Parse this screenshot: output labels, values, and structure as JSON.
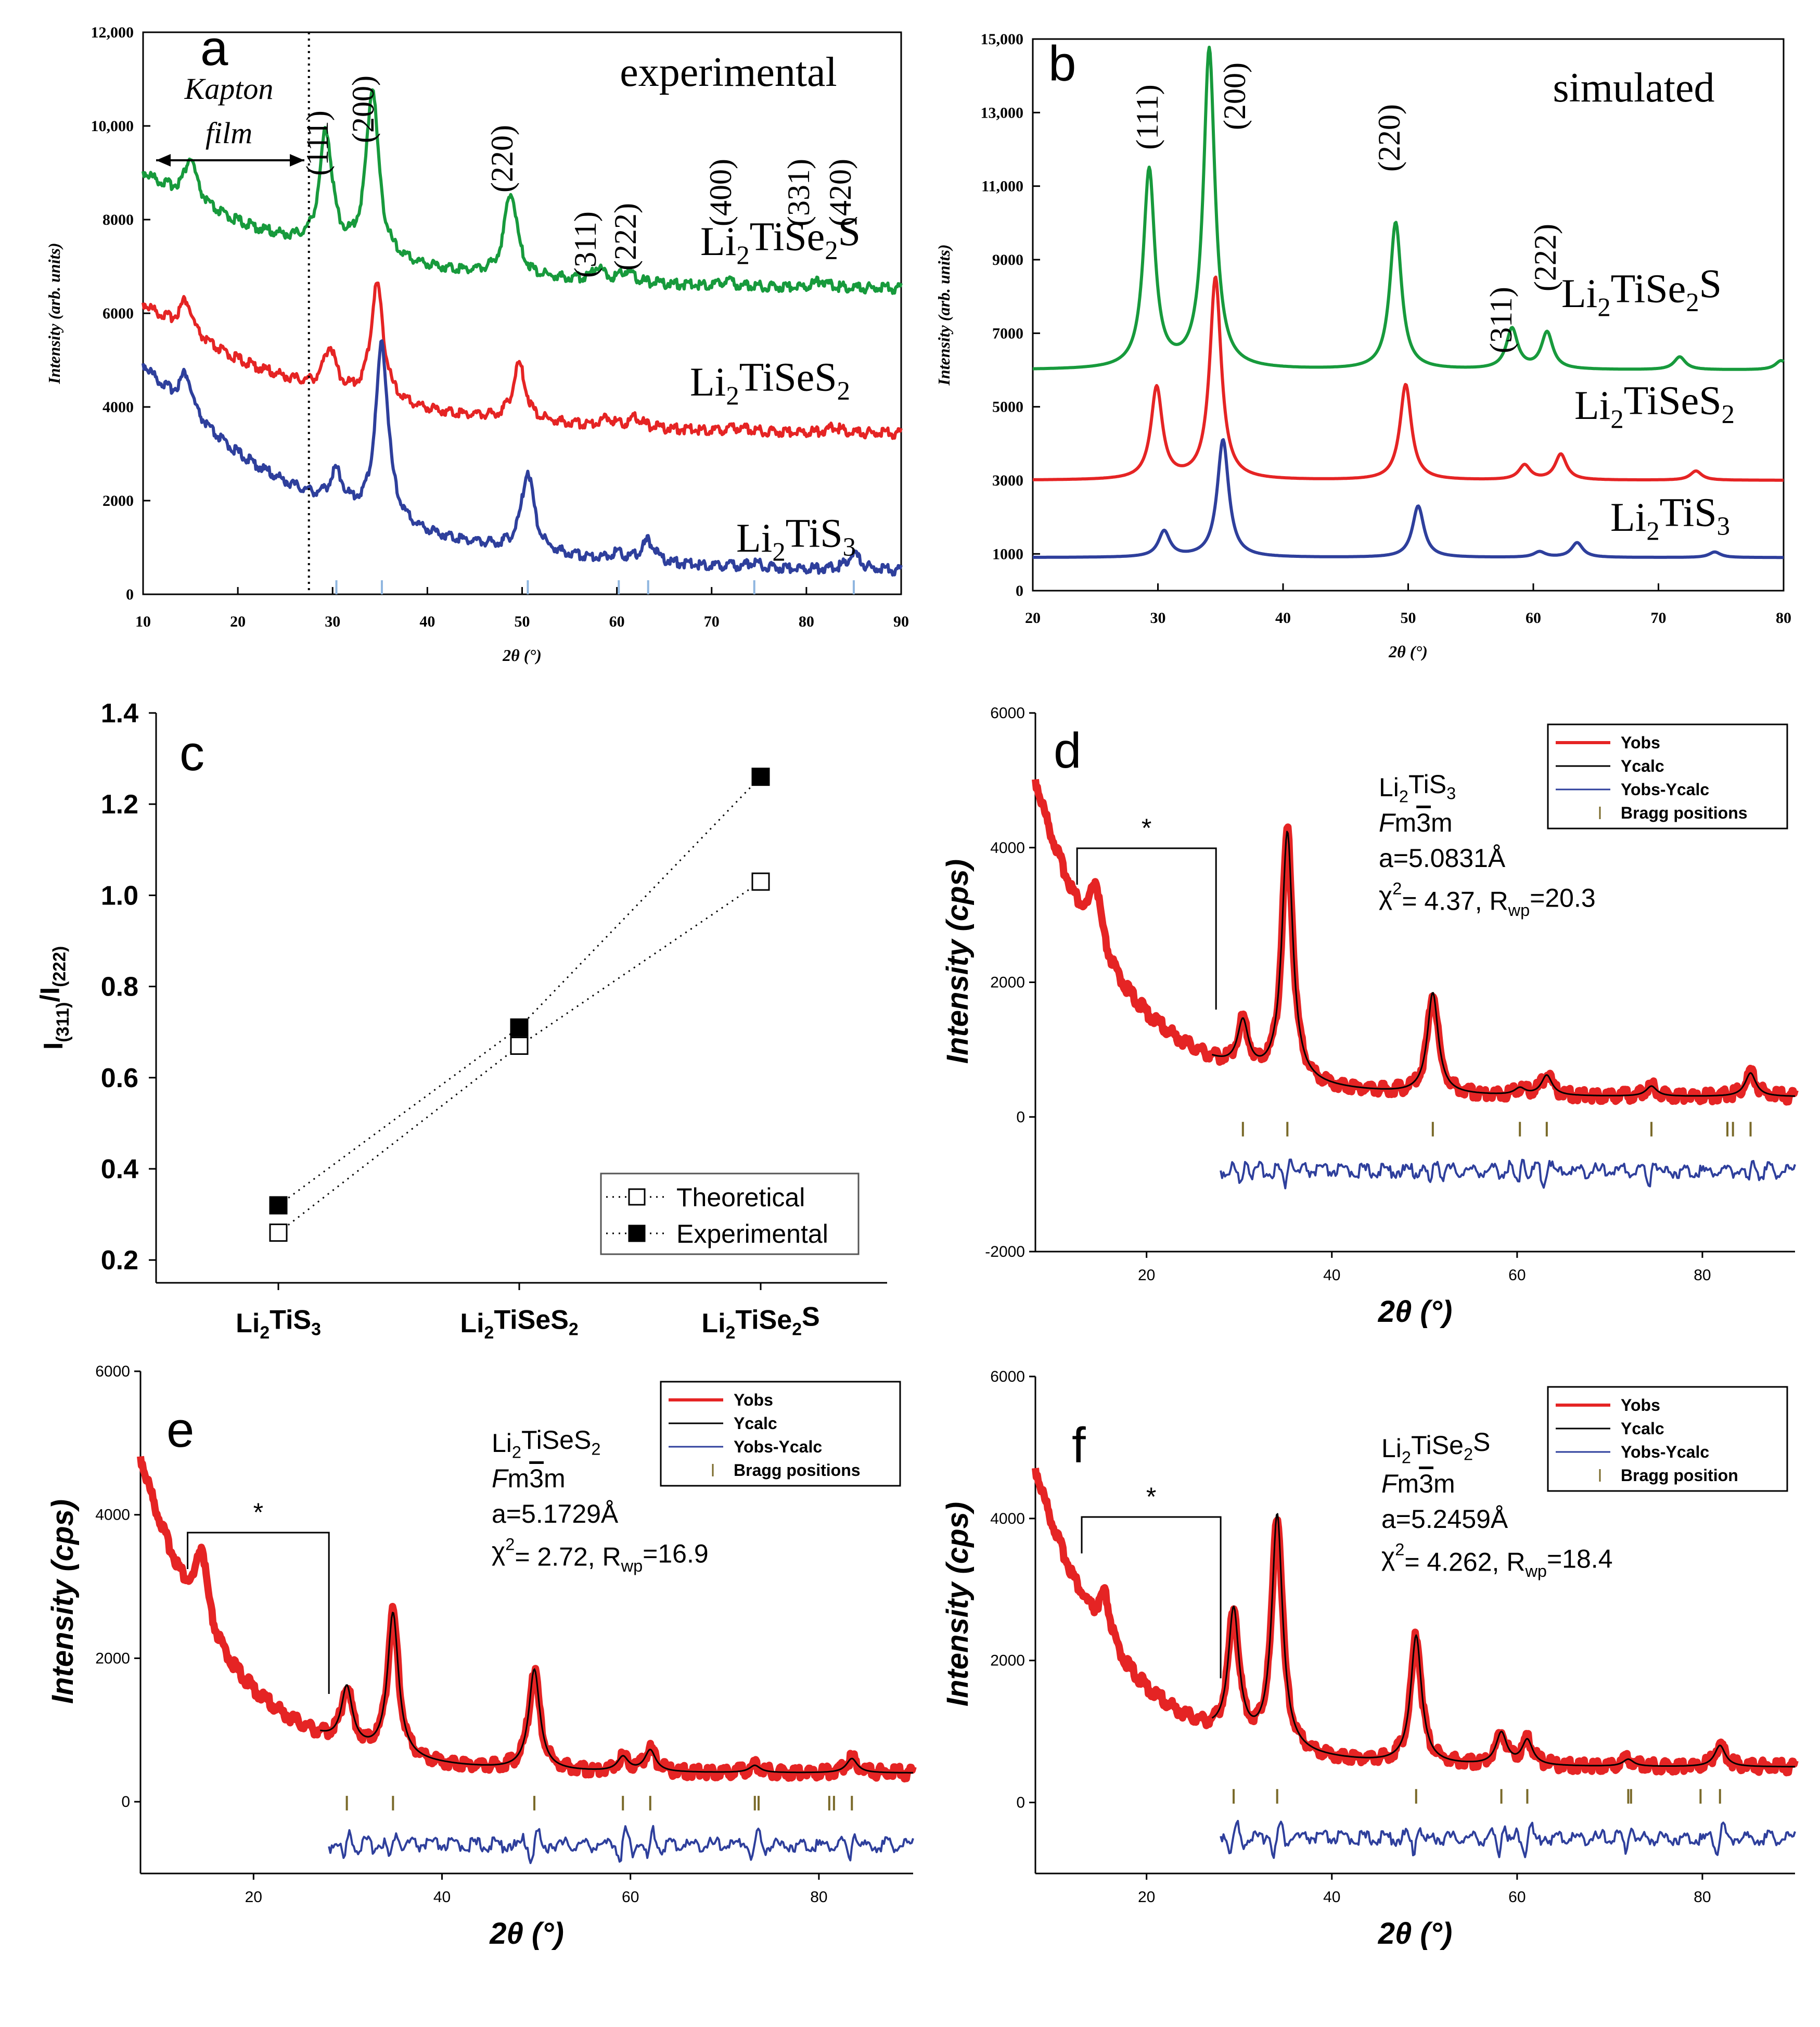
{
  "colors": {
    "green": "#179a3c",
    "red": "#e52424",
    "blue": "#2e3f9c",
    "lightblue": "#8fb6e0",
    "black": "#000000"
  },
  "chart_data": [
    {
      "type": "line",
      "panel": "a",
      "title": "experimental",
      "xlabel": "2θ (°)",
      "ylabel": "Intensity (arb. units)",
      "xlim": [
        10,
        90
      ],
      "ylim": [
        0,
        12000
      ],
      "xticks": [
        "10",
        "20",
        "30",
        "40",
        "50",
        "60",
        "70",
        "80",
        "90"
      ],
      "yticks": [
        "0",
        "2000",
        "4000",
        "6000",
        "8000",
        "10,000",
        "12,000"
      ],
      "annotation": [
        "Kapton",
        "film"
      ],
      "dotted_line_x": 27.5,
      "hkl": [
        "(111)",
        "(200)",
        "(220)",
        "(311)",
        "(222)",
        "(400)",
        "(331)",
        "(420)"
      ],
      "series": [
        {
          "name": "Li2TiSe2S",
          "label": [
            "Li",
            "2",
            "TiSe",
            "2",
            "S"
          ],
          "color": "green",
          "base": 6500,
          "start": 9000,
          "peaks": [
            [
              15,
              900
            ],
            [
              29.3,
              2500
            ],
            [
              34.2,
              3600
            ],
            [
              48.8,
              1800
            ],
            [
              58,
              300
            ],
            [
              61,
              250
            ],
            [
              71.5,
              100
            ],
            [
              81.5,
              150
            ]
          ]
        },
        {
          "name": "Li2TiSeS2",
          "label": [
            "Li",
            "2",
            "TiSeS",
            "2"
          ],
          "color": "red",
          "base": 3400,
          "start": 6200,
          "peaks": [
            [
              14.5,
              700
            ],
            [
              29.7,
              900
            ],
            [
              34.7,
              2500
            ],
            [
              49.7,
              1200
            ],
            [
              59,
              180
            ],
            [
              62,
              200
            ],
            [
              73,
              80
            ],
            [
              83,
              120
            ]
          ]
        },
        {
          "name": "Li2TiS3",
          "label": [
            "Li",
            "2",
            "TiS",
            "3"
          ],
          "color": "blue",
          "base": 450,
          "start": 4900,
          "peaks": [
            [
              14.5,
              800
            ],
            [
              30.4,
              700
            ],
            [
              35.2,
              3800
            ],
            [
              50.6,
              1700
            ],
            [
              60,
              150
            ],
            [
              63.3,
              450
            ],
            [
              74.5,
              100
            ],
            [
              85,
              350
            ]
          ]
        }
      ],
      "reference_ticks_x": [
        30.4,
        35.2,
        50.6,
        60.2,
        63.3,
        74.5,
        85
      ]
    },
    {
      "type": "line",
      "panel": "b",
      "title": "simulated",
      "xlabel": "2θ (°)",
      "ylabel": "Intensity (arb. units)",
      "xlim": [
        20,
        80
      ],
      "ylim": [
        0,
        15000
      ],
      "xticks": [
        "20",
        "30",
        "40",
        "50",
        "60",
        "70",
        "80"
      ],
      "yticks": [
        "0",
        "1000",
        "3000",
        "5000",
        "7000",
        "9000",
        "11,000",
        "13,000",
        "15,000"
      ],
      "hkl": [
        "(111)",
        "(200)",
        "(220)",
        "(311)",
        "(222)"
      ],
      "series": [
        {
          "name": "Li2TiSe2S",
          "label": [
            "Li",
            "2",
            "TiSe",
            "2",
            "S"
          ],
          "color": "green",
          "base": 6000,
          "peaks": [
            [
              29.3,
              5400
            ],
            [
              34.1,
              8700
            ],
            [
              49,
              4000
            ],
            [
              58.3,
              1100
            ],
            [
              61.1,
              1000
            ],
            [
              71.7,
              350
            ],
            [
              79.8,
              250
            ]
          ]
        },
        {
          "name": "Li2TiSeS2",
          "label": [
            "Li",
            "2",
            "TiSeS",
            "2"
          ],
          "color": "red",
          "base": 3000,
          "peaks": [
            [
              29.9,
              2500
            ],
            [
              34.6,
              5500
            ],
            [
              49.8,
              2600
            ],
            [
              59.3,
              400
            ],
            [
              62.2,
              700
            ],
            [
              73,
              250
            ]
          ]
        },
        {
          "name": "Li2TiS3",
          "label": [
            "Li",
            "2",
            "TiS",
            "3"
          ],
          "color": "blue",
          "base": 900,
          "peaks": [
            [
              30.5,
              700
            ],
            [
              35.2,
              3200
            ],
            [
              50.8,
              1400
            ],
            [
              60.5,
              150
            ],
            [
              63.5,
              400
            ],
            [
              74.5,
              150
            ]
          ]
        }
      ]
    },
    {
      "type": "scatter",
      "panel": "c",
      "ylabel": "I(311)/I(222)",
      "ylim": [
        0.15,
        1.4
      ],
      "yticks": [
        "0.2",
        "0.4",
        "0.6",
        "0.8",
        "1.0",
        "1.2",
        "1.4"
      ],
      "categories": [
        [
          "Li",
          "2",
          "TiS",
          "3",
          ""
        ],
        [
          "Li",
          "2",
          "TiSeS",
          "2",
          ""
        ],
        [
          "Li",
          "2",
          "TiSe",
          "2",
          "S"
        ]
      ],
      "series": [
        {
          "name": "Theoretical",
          "values": [
            0.26,
            0.67,
            1.03
          ],
          "marker": "open-square"
        },
        {
          "name": "Experimental",
          "values": [
            0.32,
            0.71,
            1.26
          ],
          "marker": "filled-square"
        }
      ]
    },
    {
      "type": "line",
      "panel": "d",
      "xlabel": "2θ (°)",
      "ylabel": "Intensity (cps)",
      "xlim": [
        8,
        90
      ],
      "ylim": [
        -2000,
        6000
      ],
      "xticks": [
        "20",
        "40",
        "60",
        "80"
      ],
      "yticks": [
        "-2000",
        "0",
        "2000",
        "4000",
        "6000"
      ],
      "star": "*",
      "info": {
        "formula": [
          "Li",
          "2",
          "TiS",
          "3"
        ],
        "sg": [
          "F",
          "m",
          "3",
          "m"
        ],
        "a": "a=5.0831Å",
        "chi": [
          "χ",
          "2",
          "= 4.37, R",
          "wp",
          "=20.3"
        ]
      },
      "legend": [
        "Yobs",
        "Ycalc",
        "Yobs-Ycalc",
        "Bragg positions"
      ],
      "obs": {
        "base": 300,
        "start": 5000,
        "peaks": [
          [
            14.5,
            900
          ],
          [
            30.4,
            700
          ],
          [
            35.2,
            3700
          ],
          [
            50.9,
            1500
          ],
          [
            60.3,
            100
          ],
          [
            63.2,
            300
          ],
          [
            74.5,
            150
          ],
          [
            85.2,
            350
          ]
        ]
      },
      "bragg": [
        30.4,
        35.2,
        50.9,
        60.3,
        63.2,
        74.5,
        82.7,
        83.3,
        85.2
      ],
      "diff_y": -800
    },
    {
      "type": "line",
      "panel": "e",
      "xlabel": "2θ (°)",
      "ylabel": "Intensity (cps)",
      "xlim": [
        8,
        90
      ],
      "ylim": [
        -1000,
        6000
      ],
      "xticks": [
        "20",
        "40",
        "60",
        "80"
      ],
      "yticks": [
        "0",
        "2000",
        "4000",
        "6000"
      ],
      "star": "*",
      "info": {
        "formula": [
          "Li",
          "2",
          "TiSeS",
          "2"
        ],
        "sg": [
          "F",
          "m",
          "3",
          "m"
        ],
        "a": "a=5.1729Å",
        "chi": [
          "χ",
          "2",
          "= 2.72, R",
          "wp",
          "=16.9"
        ]
      },
      "legend": [
        "Yobs",
        "Ycalc",
        "Yobs-Ycalc",
        "Bragg positions"
      ],
      "obs": {
        "base": 400,
        "start": 4800,
        "peaks": [
          [
            14.5,
            1000
          ],
          [
            29.9,
            800
          ],
          [
            34.8,
            2000
          ],
          [
            49.8,
            1400
          ],
          [
            59.2,
            200
          ],
          [
            62.1,
            300
          ],
          [
            73.2,
            100
          ],
          [
            83.5,
            200
          ]
        ]
      },
      "bragg": [
        29.9,
        34.8,
        49.8,
        59.2,
        62.1,
        73.2,
        73.6,
        81.1,
        81.6,
        83.5
      ],
      "diff_y": -600
    },
    {
      "type": "line",
      "panel": "f",
      "xlabel": "2θ (°)",
      "ylabel": "Intensity (cps)",
      "xlim": [
        8,
        90
      ],
      "ylim": [
        -1000,
        6000
      ],
      "xticks": [
        "20",
        "40",
        "60",
        "80"
      ],
      "yticks": [
        "0",
        "2000",
        "4000",
        "6000"
      ],
      "star": "*",
      "info": {
        "formula": [
          "Li",
          "2",
          "TiSe",
          "2",
          "S"
        ],
        "sg": [
          "F",
          "m",
          "3",
          "m"
        ],
        "a": "a=5.2459Å",
        "chi": [
          "χ",
          "2",
          "= 4.262, R",
          "wp",
          "=18.4"
        ]
      },
      "legend": [
        "Yobs",
        "Ycalc",
        "Yobs-Ycalc",
        "Bragg position"
      ],
      "obs": {
        "base": 500,
        "start": 4700,
        "peaks": [
          [
            15.5,
            600
          ],
          [
            29.4,
            1800
          ],
          [
            34.1,
            3300
          ],
          [
            49.1,
            1800
          ],
          [
            58.3,
            450
          ],
          [
            61.1,
            350
          ],
          [
            72,
            100
          ],
          [
            81.9,
            300
          ]
        ]
      },
      "bragg": [
        29.4,
        34.1,
        49.1,
        58.3,
        61.1,
        72,
        72.3,
        79.8,
        81.9
      ],
      "diff_y": -500
    }
  ]
}
